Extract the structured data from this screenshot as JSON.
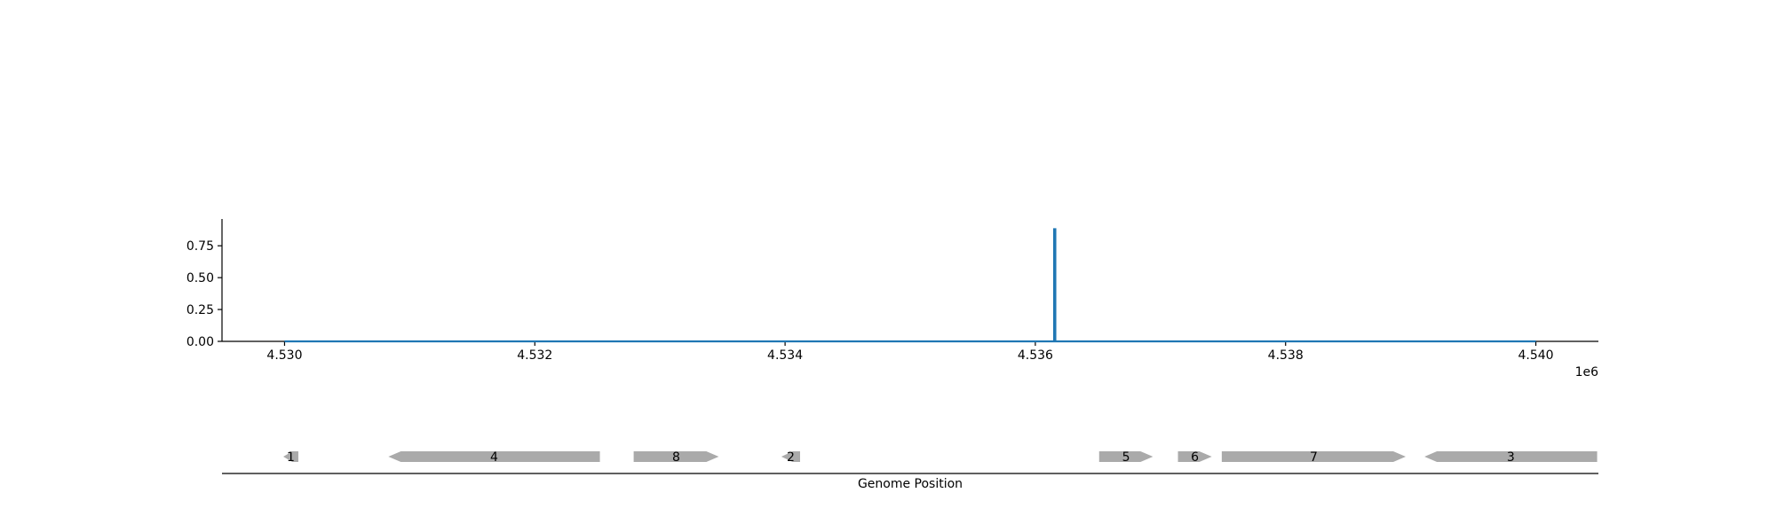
{
  "chart_data": [
    {
      "type": "line",
      "title": "",
      "xlabel": "",
      "ylabel": "",
      "x_offset_label": "1e6",
      "xlim": [
        4529500,
        4540500
      ],
      "ylim": [
        0,
        0.96
      ],
      "x_ticks": [
        4530000,
        4532000,
        4534000,
        4536000,
        4538000,
        4540000
      ],
      "x_tick_labels": [
        "4.530",
        "4.532",
        "4.534",
        "4.536",
        "4.538",
        "4.540"
      ],
      "y_ticks": [
        0,
        0.25,
        0.5,
        0.75
      ],
      "y_tick_labels": [
        "0.00",
        "0.25",
        "0.50",
        "0.75"
      ],
      "grid": false,
      "series": [
        {
          "color": "#1f77b4",
          "x": [
            4530000,
            4536150,
            4536150,
            4536160,
            4536160,
            4540000
          ],
          "y": [
            0,
            0,
            0.88,
            0.88,
            0,
            0
          ]
        }
      ]
    },
    {
      "type": "gene-track",
      "xlabel": "Genome Position",
      "xlim": [
        4529500,
        4540500
      ],
      "color": "#aaaaaa",
      "genes": [
        {
          "label": "1",
          "start": 4529990,
          "end": 4530110,
          "strand": "-"
        },
        {
          "label": "4",
          "start": 4530830,
          "end": 4532520,
          "strand": "-"
        },
        {
          "label": "8",
          "start": 4532790,
          "end": 4533470,
          "strand": "+"
        },
        {
          "label": "2",
          "start": 4533970,
          "end": 4534120,
          "strand": "-"
        },
        {
          "label": "5",
          "start": 4536510,
          "end": 4536940,
          "strand": "+"
        },
        {
          "label": "6",
          "start": 4537140,
          "end": 4537410,
          "strand": "+"
        },
        {
          "label": "7",
          "start": 4537490,
          "end": 4538960,
          "strand": "+"
        },
        {
          "label": "3",
          "start": 4539110,
          "end": 4540490,
          "strand": "-"
        }
      ]
    }
  ]
}
